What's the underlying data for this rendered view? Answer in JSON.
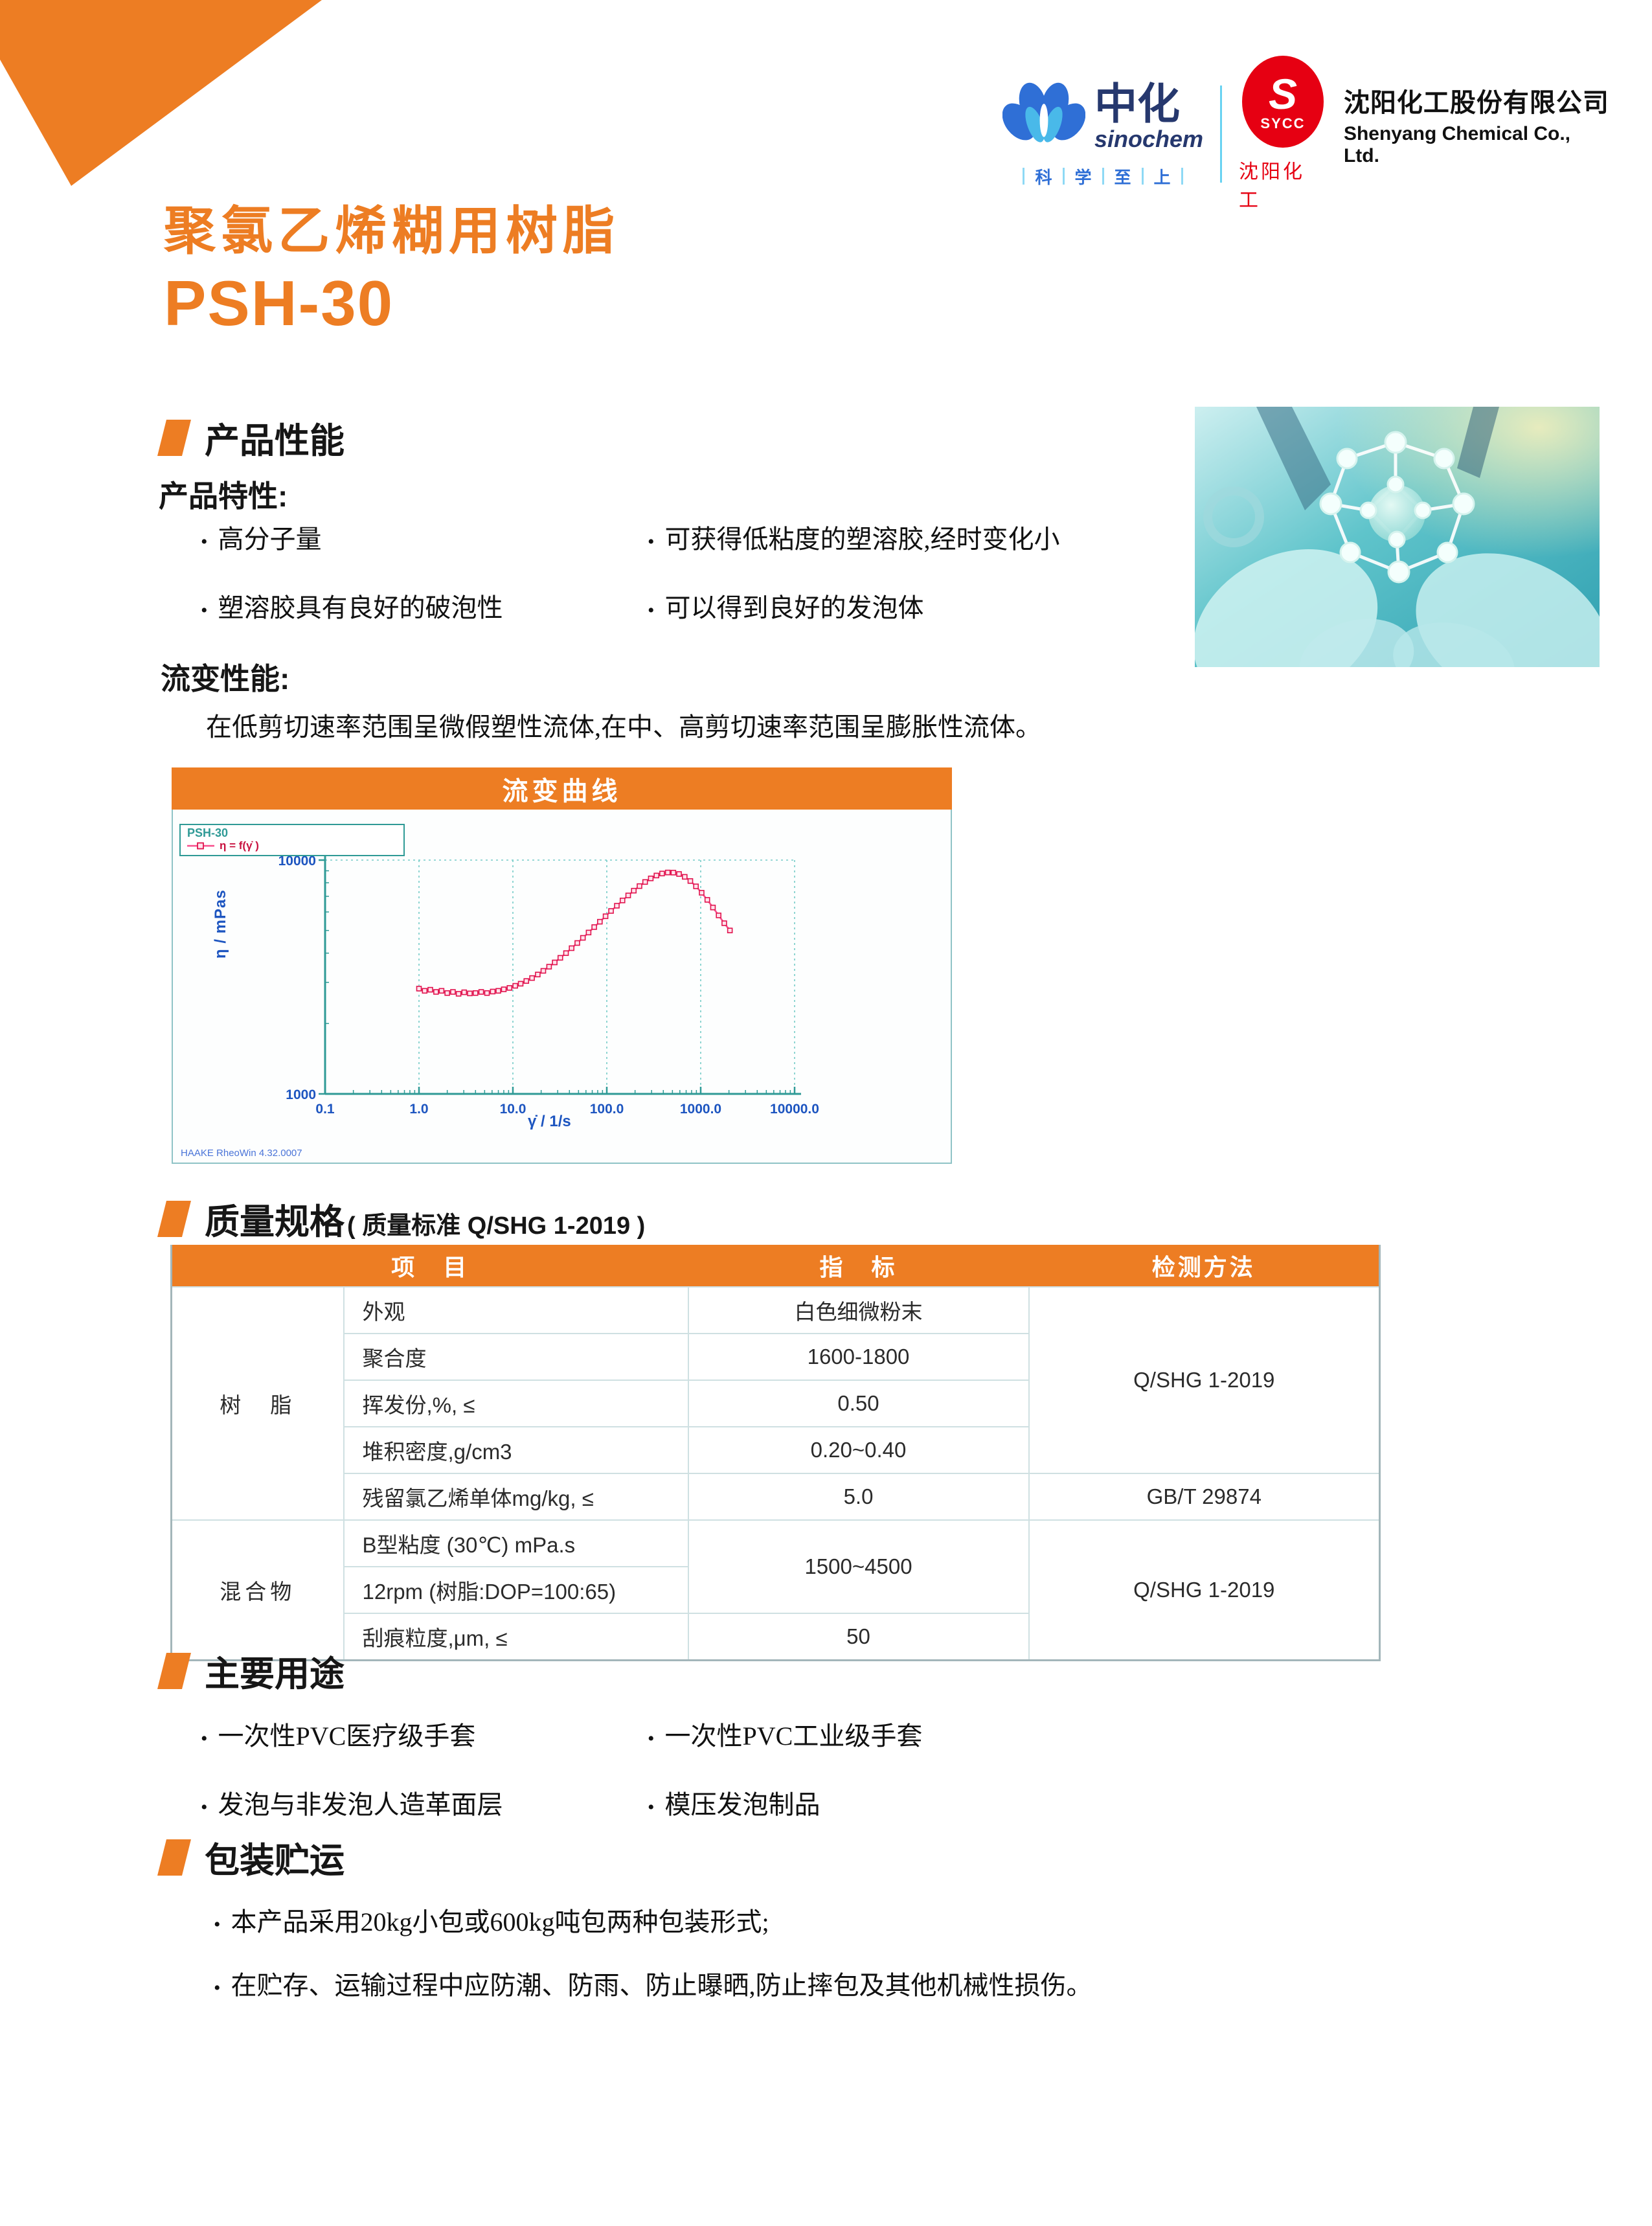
{
  "header": {
    "sinochem_cn": "中化",
    "sinochem_en": "sinochem",
    "tagline": [
      "科",
      "学",
      "至",
      "上"
    ],
    "sycc_s": "S",
    "sycc_abbr": "SYCC",
    "sycc_cn": "沈阳化工",
    "company_cn": "沈阳化工股份有限公司",
    "company_en": "Shenyang Chemical Co., Ltd."
  },
  "product": {
    "title_cn": "聚氯乙烯糊用树脂",
    "title_model": "PSH-30"
  },
  "performance": {
    "heading": "产品性能",
    "subheading": "产品特性:",
    "features": [
      "高分子量",
      "可获得低粘度的塑溶胶,经时变化小",
      "塑溶胶具有良好的破泡性",
      "可以得到良好的发泡体"
    ]
  },
  "rheology": {
    "label": "流变性能:",
    "description": "在低剪切速率范围呈微假塑性流体,在中、高剪切速率范围呈膨胀性流体。"
  },
  "chart": {
    "panel_title": "流变曲线",
    "legend_series": "PSH-30",
    "legend_entry": "η = f(γ̇ )",
    "ylabel": "η / mPas",
    "xlabel": "γ̇ / 1/s",
    "watermark": "HAAKE RheoWin 4.32.0007"
  },
  "chart_data": {
    "type": "line",
    "title": "流变曲线",
    "xlabel": "γ̇ / 1/s",
    "ylabel": "η / mPas",
    "x_scale": "log",
    "y_scale": "log",
    "xlim": [
      0.1,
      10000
    ],
    "ylim": [
      1000,
      10000
    ],
    "x_ticks": [
      "0.1",
      "1.0",
      "10.0",
      "100.0",
      "1000.0",
      "10000.0"
    ],
    "y_ticks": [
      "1000",
      "10000"
    ],
    "grid": "dashed vertical at decades, dashed horizontal at 10000",
    "legend_position": "top-left",
    "series": [
      {
        "name": "η = f(γ̇ )",
        "points": [
          [
            1.0,
            2820
          ],
          [
            1.15,
            2760
          ],
          [
            1.32,
            2790
          ],
          [
            1.52,
            2730
          ],
          [
            1.74,
            2760
          ],
          [
            2.0,
            2700
          ],
          [
            2.3,
            2730
          ],
          [
            2.64,
            2680
          ],
          [
            3.03,
            2720
          ],
          [
            3.48,
            2690
          ],
          [
            4.0,
            2700
          ],
          [
            4.6,
            2730
          ],
          [
            5.3,
            2700
          ],
          [
            6.1,
            2740
          ],
          [
            7.0,
            2760
          ],
          [
            8.0,
            2800
          ],
          [
            9.2,
            2840
          ],
          [
            10.6,
            2900
          ],
          [
            12.1,
            2960
          ],
          [
            13.9,
            3040
          ],
          [
            16.0,
            3130
          ],
          [
            18.4,
            3240
          ],
          [
            21.1,
            3360
          ],
          [
            24.3,
            3500
          ],
          [
            27.9,
            3650
          ],
          [
            32.0,
            3820
          ],
          [
            36.8,
            4000
          ],
          [
            42.2,
            4200
          ],
          [
            48.5,
            4420
          ],
          [
            55.7,
            4650
          ],
          [
            64.0,
            4900
          ],
          [
            73.5,
            5170
          ],
          [
            84.4,
            5450
          ],
          [
            97.0,
            5750
          ],
          [
            111.0,
            6060
          ],
          [
            128.0,
            6380
          ],
          [
            147.0,
            6720
          ],
          [
            169.0,
            7060
          ],
          [
            194.0,
            7400
          ],
          [
            223.0,
            7740
          ],
          [
            256.0,
            8060
          ],
          [
            294.0,
            8350
          ],
          [
            338.0,
            8590
          ],
          [
            388.0,
            8760
          ],
          [
            446.0,
            8850
          ],
          [
            512.0,
            8840
          ],
          [
            588.0,
            8720
          ],
          [
            676.0,
            8480
          ],
          [
            776.0,
            8140
          ],
          [
            891.0,
            7720
          ],
          [
            1024.0,
            7250
          ],
          [
            1176.0,
            6760
          ],
          [
            1351.0,
            6270
          ],
          [
            1552.0,
            5800
          ],
          [
            1783.0,
            5370
          ],
          [
            2048.0,
            5000
          ]
        ]
      }
    ]
  },
  "spec": {
    "heading": "质量规格",
    "heading_note": "( 质量标准 Q/SHG 1-2019 )",
    "table": {
      "columns": [
        "项　目",
        "指　标",
        "检测方法"
      ],
      "rows": [
        {
          "group": "树　脂",
          "group_span": 5,
          "item": "外观",
          "value": "白色细微粉末",
          "method": "Q/SHG 1-2019",
          "method_span": 4
        },
        {
          "item": "聚合度",
          "value": "1600-1800"
        },
        {
          "item": "挥发份,%, ≤",
          "value": "0.50"
        },
        {
          "item": "堆积密度,g/cm3",
          "value": "0.20~0.40"
        },
        {
          "item": "残留氯乙烯单体mg/kg, ≤",
          "value": "5.0",
          "method": "GB/T 29874",
          "method_span": 1
        },
        {
          "group": "混合物",
          "group_span": 3,
          "item": "B型粘度 (30℃) mPa.s",
          "value": "1500~4500",
          "value_span": 2,
          "method": "Q/SHG 1-2019",
          "method_span": 3
        },
        {
          "item": "12rpm (树脂:DOP=100:65)"
        },
        {
          "item": "刮痕粒度,μm, ≤",
          "value": "50"
        }
      ]
    }
  },
  "uses": {
    "heading": "主要用途",
    "items": [
      "一次性PVC医疗级手套",
      "一次性PVC工业级手套",
      "发泡与非发泡人造革面层",
      "模压发泡制品"
    ]
  },
  "packaging": {
    "heading": "包装贮运",
    "items": [
      "本产品采用20kg小包或600kg吨包两种包装形式;",
      "在贮存、运输过程中应防潮、防雨、防止曝晒,防止摔包及其他机械性损伤。"
    ]
  },
  "colors": {
    "accent_orange": "#ED7D23",
    "chart_teal": "#2F9A96",
    "tick_blue": "#1D55C0",
    "curve_pink": "#F74E8C",
    "marker_red": "#E1134E",
    "sycc_red": "#E60012",
    "sinochem_navy": "#26386E",
    "sinochem_blue": "#2F6FD6",
    "sinochem_cyan": "#49B9E9"
  }
}
